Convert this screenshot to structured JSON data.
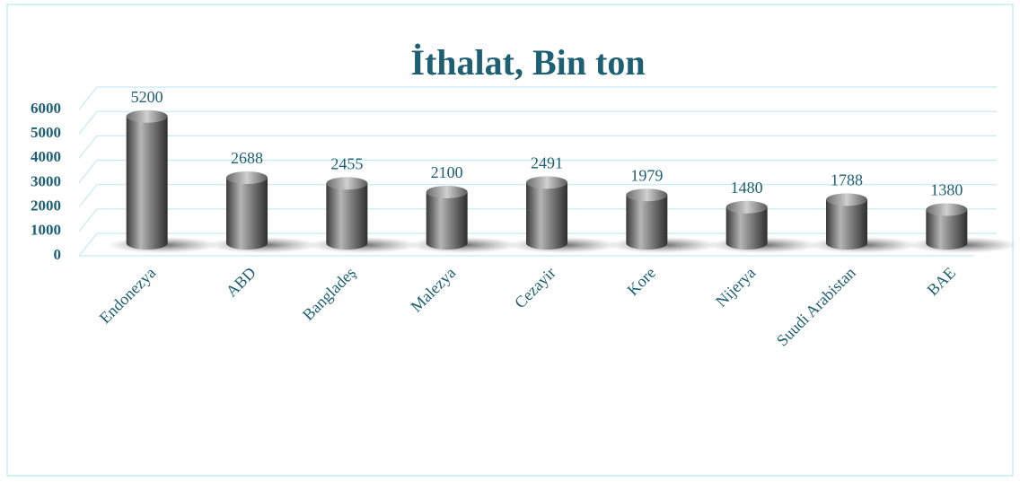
{
  "chart_data": {
    "type": "bar",
    "title": "İthalat, Bin ton",
    "categories": [
      "Endonezya",
      "ABD",
      "Bangladeş",
      "Malezya",
      "Cezayir",
      "Kore",
      "Nijerya",
      "Suudi Arabistan",
      "BAE"
    ],
    "values": [
      5200,
      2688,
      2455,
      2100,
      2491,
      1979,
      1480,
      1788,
      1380
    ],
    "color": "#6b6b6b",
    "ylim": [
      0,
      6000
    ],
    "yticks": [
      0,
      1000,
      2000,
      3000,
      4000,
      5000,
      6000
    ],
    "grid": true
  }
}
